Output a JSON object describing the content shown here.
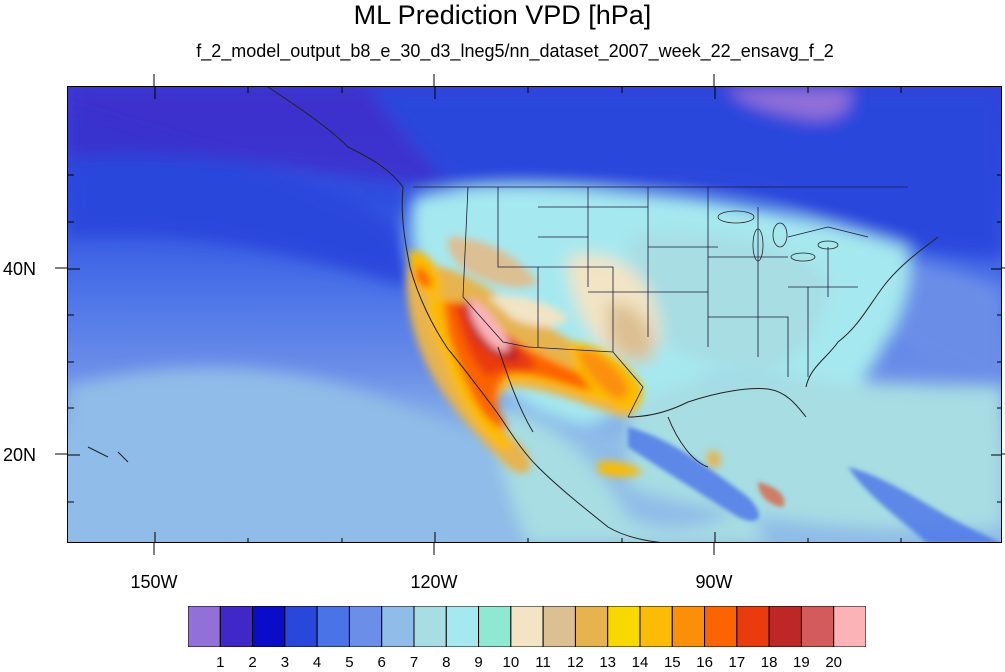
{
  "title": "ML Prediction VPD [hPa]",
  "subtitle": "f_2_model_output_b8_e_30_d3_lneg5/nn_dataset_2007_week_22_ensavg_f_2",
  "map": {
    "projection": "cylindrical equidistant",
    "lon_range": [
      -160,
      -60
    ],
    "lat_range": [
      10,
      60
    ],
    "lat_ticks": [
      {
        "value": 40,
        "label": "40N"
      },
      {
        "value": 20,
        "label": "20N"
      }
    ],
    "lon_ticks": [
      {
        "value": -150,
        "label": "150W"
      },
      {
        "value": -120,
        "label": "120W"
      },
      {
        "value": -90,
        "label": "90W"
      }
    ],
    "features": [
      "coastlines",
      "country borders",
      "US state borders"
    ]
  },
  "colorbar": {
    "levels": [
      "1",
      "2",
      "3",
      "4",
      "5",
      "6",
      "7",
      "8",
      "9",
      "10",
      "11",
      "12",
      "13",
      "14",
      "15",
      "16",
      "17",
      "18",
      "19",
      "20"
    ],
    "colors": [
      "#9170d8",
      "#3f27c8",
      "#0a0cc8",
      "#2a47dc",
      "#4a73e8",
      "#6b8ee8",
      "#8fbce8",
      "#a7dde3",
      "#a6e8ef",
      "#8ee8d2",
      "#f2e4c4",
      "#dcbf92",
      "#e6b34f",
      "#f7d800",
      "#fcbb05",
      "#fb9008",
      "#fc6401",
      "#ea3b0e",
      "#bd2726",
      "#d45b5c",
      "#fbb3b8"
    ]
  }
}
